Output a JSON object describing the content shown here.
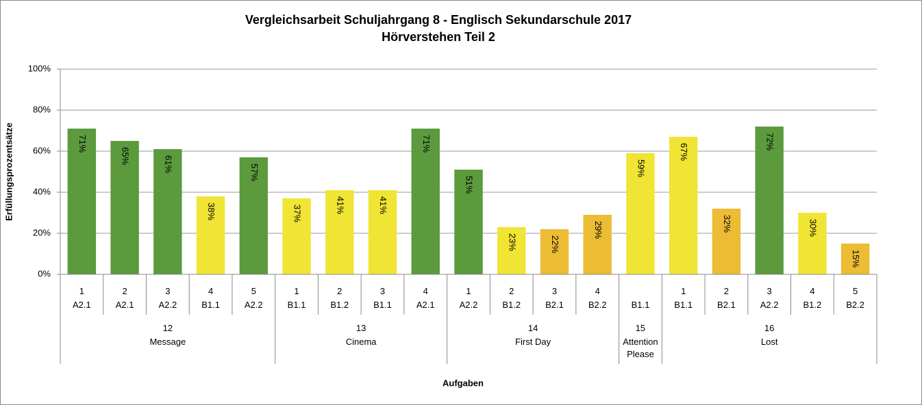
{
  "chart_data": {
    "type": "bar",
    "title": "Vergleichsarbeit Schuljahrgang 8 - Englisch Sekundarschule  2017",
    "subtitle": "Hörverstehen Teil 2",
    "y_label": "Erfüllungsprozentsätze",
    "x_label": "Aufgaben",
    "ylim": [
      0,
      100
    ],
    "yticks": [
      {
        "value": 0,
        "label": "0%"
      },
      {
        "value": 20,
        "label": "20%"
      },
      {
        "value": 40,
        "label": "40%"
      },
      {
        "value": 60,
        "label": "60%"
      },
      {
        "value": 80,
        "label": "80%"
      },
      {
        "value": 100,
        "label": "100%"
      }
    ],
    "grid": true,
    "groups": [
      {
        "number": "12",
        "name": "Message",
        "tasks": [
          "1",
          "2",
          "3",
          "4",
          "5"
        ],
        "levels": [
          "A2.1",
          "A2.1",
          "A2.2",
          "B1.1",
          "A2.2"
        ],
        "values": [
          71,
          65,
          61,
          38,
          57
        ],
        "value_labels": [
          "71%",
          "65%",
          "61%",
          "38%",
          "57%"
        ],
        "colors": [
          "#5b9a3d",
          "#5b9a3d",
          "#5b9a3d",
          "#f0e434",
          "#5b9a3d"
        ]
      },
      {
        "number": "13",
        "name": "Cinema",
        "tasks": [
          "1",
          "2",
          "3",
          "4"
        ],
        "levels": [
          "B1.1",
          "B1.2",
          "B1.1",
          "A2.1"
        ],
        "values": [
          37,
          41,
          41,
          71
        ],
        "value_labels": [
          "37%",
          "41%",
          "41%",
          "71%"
        ],
        "colors": [
          "#f0e434",
          "#f0e434",
          "#f0e434",
          "#5b9a3d"
        ]
      },
      {
        "number": "14",
        "name": "First Day",
        "tasks": [
          "1",
          "2",
          "3",
          "4"
        ],
        "levels": [
          "A2.2",
          "B1.2",
          "B2.1",
          "B2.2"
        ],
        "values": [
          51,
          23,
          22,
          29
        ],
        "value_labels": [
          "51%",
          "23%",
          "22%",
          "29%"
        ],
        "colors": [
          "#5b9a3d",
          "#f0e434",
          "#ebbc34",
          "#ebbc34"
        ]
      },
      {
        "number": "15",
        "name": "Attention Please",
        "tasks": [
          null
        ],
        "levels": [
          "B1.1"
        ],
        "values": [
          59
        ],
        "value_labels": [
          "59%"
        ],
        "colors": [
          "#f0e434"
        ]
      },
      {
        "number": "16",
        "name": "Lost",
        "tasks": [
          "1",
          "2",
          "3",
          "4",
          "5"
        ],
        "levels": [
          "B1.1",
          "B2.1",
          "A2.2",
          "B1.2",
          "B2.2"
        ],
        "values": [
          67,
          32,
          72,
          30,
          15
        ],
        "value_labels": [
          "67%",
          "32%",
          "72%",
          "30%",
          "15%"
        ],
        "colors": [
          "#f0e434",
          "#ebbc34",
          "#5b9a3d",
          "#f0e434",
          "#ebbc34"
        ]
      }
    ]
  }
}
